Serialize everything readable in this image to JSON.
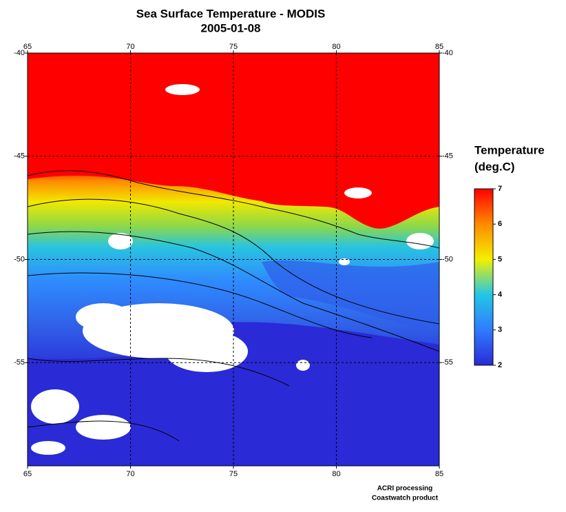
{
  "title": "Sea Surface Temperature - MODIS",
  "subtitle": "2005-01-08",
  "map": {
    "xlim": [
      65,
      85
    ],
    "ylim": [
      -40,
      -60
    ],
    "xticks": [
      65,
      70,
      75,
      80,
      85
    ],
    "yticks": [
      -40,
      -45,
      -50,
      -55
    ],
    "grid": true
  },
  "colorbar": {
    "title": [
      "Temperature",
      "(deg.C)"
    ],
    "range": [
      2,
      7
    ],
    "ticks": [
      2,
      3,
      4,
      5,
      6,
      7
    ],
    "colors": [
      "#2a2ad6",
      "#2f7cff",
      "#22c6e6",
      "#f2f000",
      "#ff8a00",
      "#ff0000"
    ]
  },
  "credits": [
    "ACRI processing",
    "Coastwatch product"
  ]
}
